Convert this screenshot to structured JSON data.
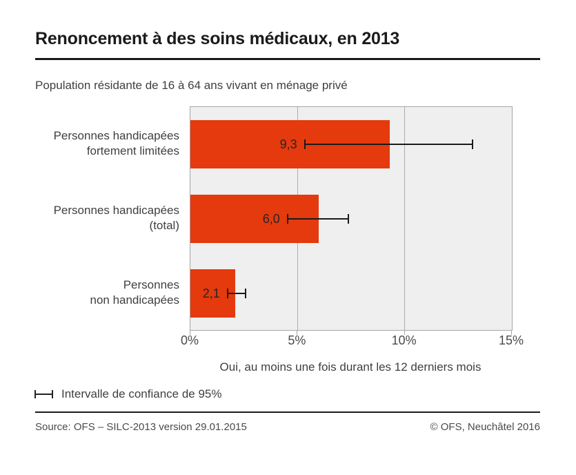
{
  "page": {
    "title": "Renoncement à des soins médicaux, en 2013",
    "subtitle": "Population résidante de 16 à 64 ans vivant en ménage privé"
  },
  "chart_data": {
    "type": "bar",
    "orientation": "horizontal",
    "categories": [
      [
        "Personnes handicapées",
        "fortement limitées"
      ],
      [
        "Personnes handicapées",
        "(total)"
      ],
      [
        "Personnes",
        "non handicapées"
      ]
    ],
    "values": [
      9.3,
      6.0,
      2.1
    ],
    "value_labels": [
      "9,3",
      "6,0",
      "2,1"
    ],
    "confidence_intervals_95": [
      [
        5.3,
        13.2
      ],
      [
        4.5,
        7.4
      ],
      [
        1.7,
        2.6
      ]
    ],
    "xlabel": "Oui, au moins une fois durant les 12 derniers mois",
    "xlim": [
      0,
      15
    ],
    "x_ticks": [
      0,
      5,
      10,
      15
    ],
    "x_tick_labels": [
      "0%",
      "5%",
      "10%",
      "15%"
    ],
    "gridlines_x": [
      5,
      10
    ],
    "legend_position": "bottom-left",
    "bar_color": "#e5390e",
    "plot_bg_color": "#efefef",
    "error_bar_color": "#1a1a1a"
  },
  "legend": {
    "icon": "error-bar-icon",
    "label": "Intervalle de confiance de 95%"
  },
  "footer": {
    "source": "Source: OFS – SILC-2013 version 29.01.2015",
    "copyright": "© OFS, Neuchâtel 2016"
  }
}
